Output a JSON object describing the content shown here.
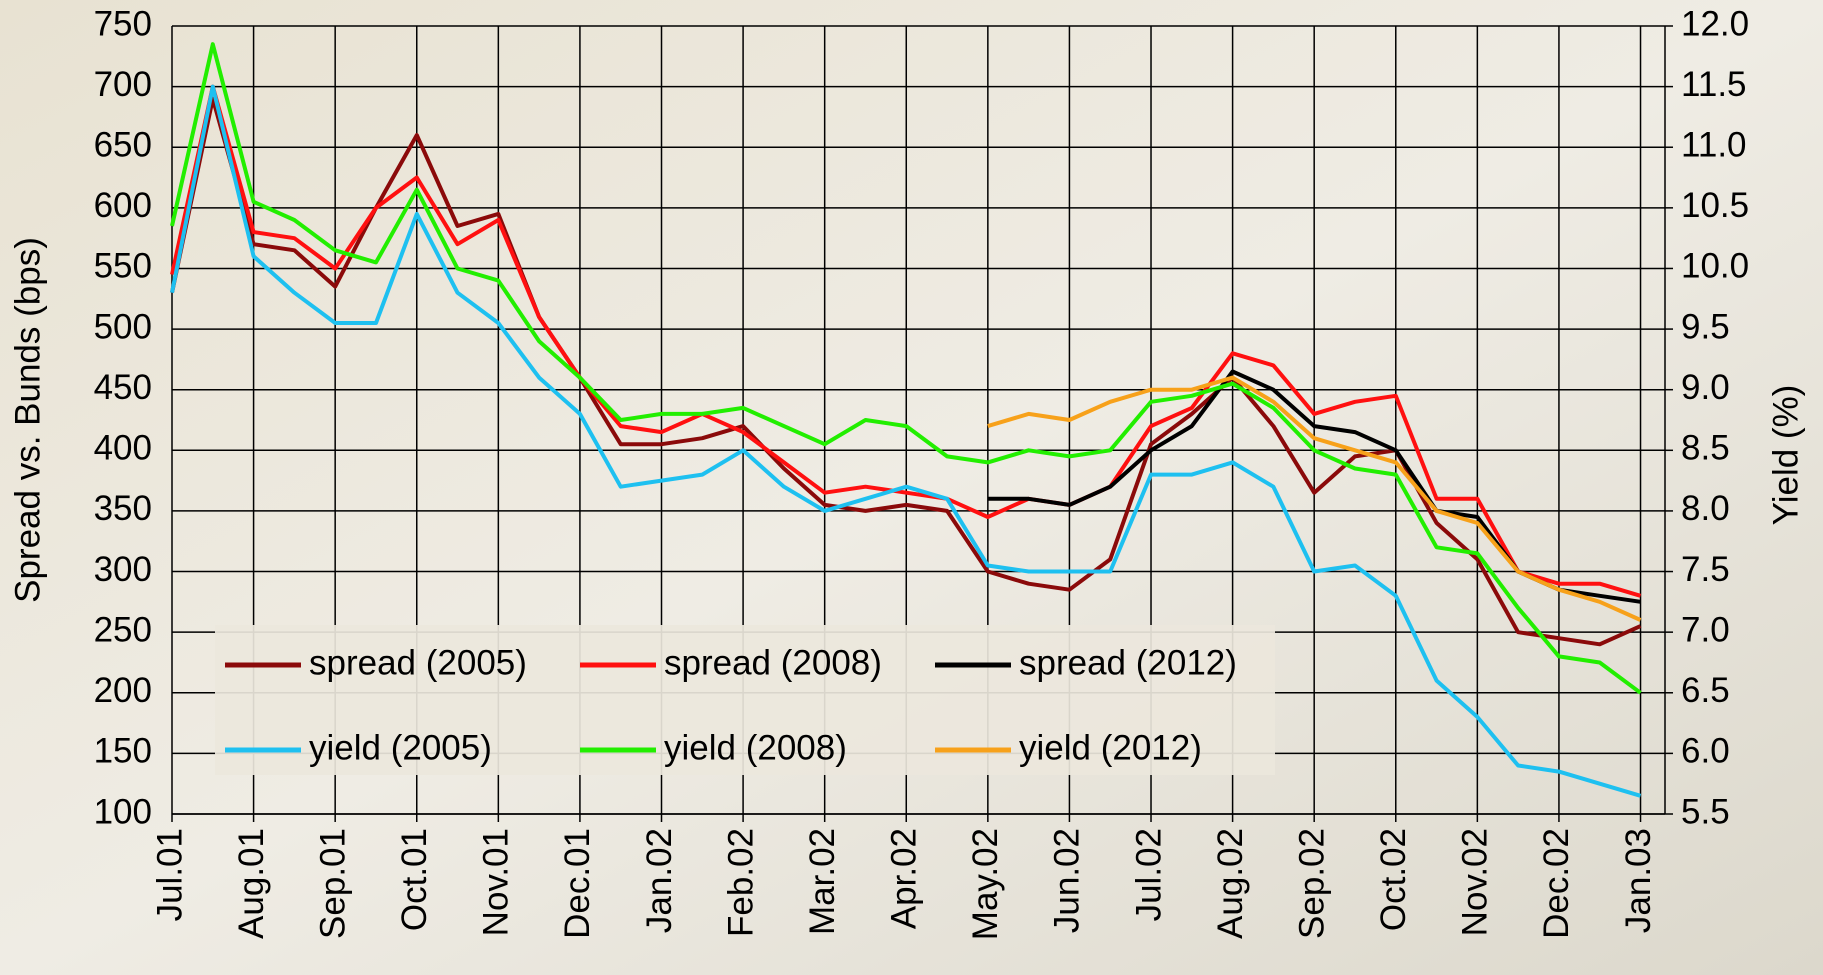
{
  "chart_data": {
    "type": "line",
    "y_label": "Spread vs. Bunds (bps)",
    "y2_label": "Yield (%)",
    "categories": [
      "Jul.01",
      null,
      "Aug.01",
      null,
      "Sep.01",
      null,
      "Oct.01",
      null,
      "Nov.01",
      null,
      "Dec.01",
      null,
      "Jan.02",
      null,
      "Feb.02",
      null,
      "Mar.02",
      null,
      "Apr.02",
      null,
      "May.02",
      null,
      "Jun.02",
      null,
      "Jul.02",
      null,
      "Aug.02",
      null,
      "Sep.02",
      null,
      "Oct.02",
      null,
      "Nov.02",
      null,
      "Dec.02",
      null,
      "Jan.03"
    ],
    "ylim": [
      100,
      750
    ],
    "yticks": [
      100,
      150,
      200,
      250,
      300,
      350,
      400,
      450,
      500,
      550,
      600,
      650,
      700,
      750
    ],
    "y2lim": [
      5.5,
      12
    ],
    "y2ticks": [
      5.5,
      {
        "value": 6,
        "label": "6.0"
      },
      6.5,
      {
        "value": 7,
        "label": "7.0"
      },
      7.5,
      {
        "value": 8,
        "label": "8.0"
      },
      8.5,
      {
        "value": 9,
        "label": "9.0"
      },
      9.5,
      {
        "value": 10,
        "label": "10.0"
      },
      10.5,
      {
        "value": 11,
        "label": "11.0"
      },
      11.5,
      {
        "value": 12,
        "label": "12.0"
      }
    ],
    "grid": true,
    "series": [
      {
        "name": "spread (2005)",
        "color": "#8b0a0a",
        "values": [
          530,
          690,
          570,
          565,
          535,
          600,
          660,
          585,
          595,
          510,
          460,
          405,
          405,
          410,
          420,
          385,
          355,
          350,
          355,
          350,
          300,
          290,
          285,
          310,
          405,
          430,
          460,
          420,
          365,
          395,
          400,
          340,
          310,
          250,
          245,
          240,
          255
        ]
      },
      {
        "name": "spread (2008)",
        "color": "#ff1010",
        "values": [
          545,
          700,
          580,
          575,
          550,
          600,
          625,
          570,
          590,
          510,
          460,
          420,
          415,
          430,
          415,
          390,
          365,
          370,
          365,
          360,
          345,
          360,
          355,
          370,
          420,
          435,
          480,
          470,
          430,
          440,
          445,
          360,
          360,
          300,
          290,
          290,
          280
        ]
      },
      {
        "name": "spread (2012)",
        "color": "#000000",
        "values": [
          null,
          null,
          null,
          null,
          null,
          null,
          null,
          null,
          null,
          null,
          null,
          null,
          null,
          null,
          null,
          null,
          null,
          null,
          null,
          null,
          360,
          360,
          355,
          370,
          400,
          420,
          465,
          450,
          420,
          415,
          400,
          350,
          345,
          300,
          285,
          280,
          275
        ]
      },
      {
        "name": "yield (2005)",
        "color": "#1ec0f0",
        "axis": "y2",
        "values": [
          9.8,
          11.5,
          10.1,
          9.8,
          9.55,
          9.55,
          10.45,
          9.8,
          9.55,
          9.1,
          8.8,
          8.2,
          8.25,
          8.3,
          8.5,
          8.2,
          8.0,
          8.1,
          8.2,
          8.1,
          7.55,
          7.5,
          7.5,
          7.5,
          8.3,
          8.3,
          8.4,
          8.2,
          7.5,
          7.55,
          7.3,
          6.6,
          6.3,
          5.9,
          5.85,
          5.75,
          5.65
        ]
      },
      {
        "name": "yield (2008)",
        "color": "#22ee00",
        "axis": "y2",
        "values": [
          10.35,
          11.85,
          10.55,
          10.4,
          10.15,
          10.05,
          10.65,
          10.0,
          9.9,
          9.4,
          9.1,
          8.75,
          8.8,
          8.8,
          8.85,
          8.7,
          8.55,
          8.75,
          8.7,
          8.45,
          8.4,
          8.5,
          8.45,
          8.5,
          8.9,
          8.95,
          9.05,
          8.85,
          8.5,
          8.35,
          8.3,
          7.7,
          7.65,
          7.2,
          6.8,
          6.75,
          6.5
        ]
      },
      {
        "name": "yield (2012)",
        "color": "#f7a11a",
        "axis": "y2",
        "values": [
          null,
          null,
          null,
          null,
          null,
          null,
          null,
          null,
          null,
          null,
          null,
          null,
          null,
          null,
          null,
          null,
          null,
          null,
          null,
          null,
          8.7,
          8.8,
          8.75,
          8.9,
          9.0,
          9.0,
          9.1,
          8.9,
          8.6,
          8.5,
          8.4,
          8.0,
          7.9,
          7.5,
          7.35,
          7.25,
          7.1
        ]
      }
    ]
  }
}
